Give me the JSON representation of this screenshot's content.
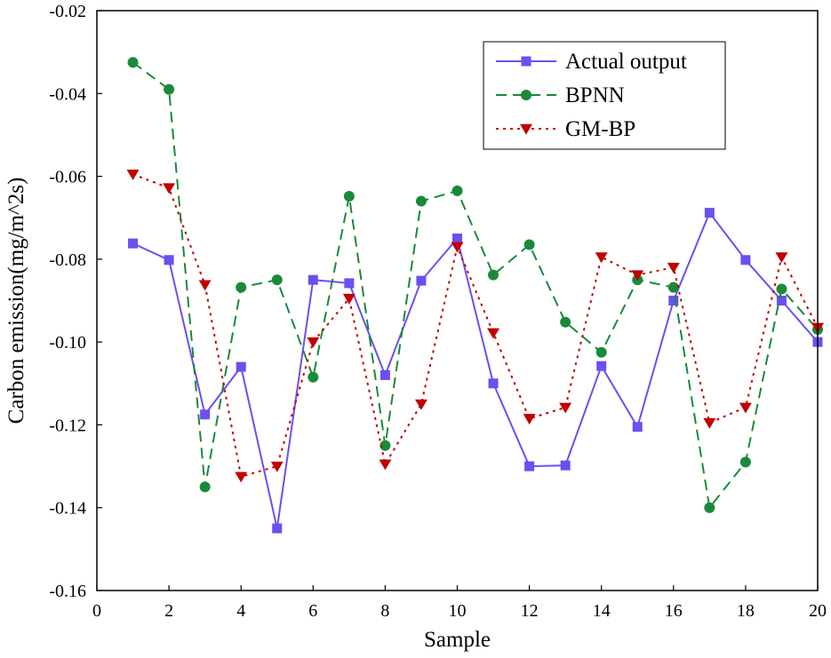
{
  "chart_data": {
    "type": "line",
    "title": "",
    "xlabel": "Sample",
    "ylabel": "Carbon emission(mg/m^2s)",
    "xlim": [
      0,
      20
    ],
    "ylim": [
      -0.16,
      -0.02
    ],
    "xticks": [
      0,
      2,
      4,
      6,
      8,
      10,
      12,
      14,
      16,
      18,
      20
    ],
    "yticks": [
      -0.16,
      -0.14,
      -0.12,
      -0.1,
      -0.08,
      -0.06,
      -0.04,
      -0.02
    ],
    "xtick_labels": [
      "0",
      "2",
      "4",
      "6",
      "8",
      "10",
      "12",
      "14",
      "16",
      "18",
      "20"
    ],
    "ytick_labels": [
      "-0.16",
      "-0.14",
      "-0.12",
      "-0.10",
      "-0.08",
      "-0.06",
      "-0.04",
      "-0.02"
    ],
    "grid": false,
    "legend_position": "top-right",
    "x": [
      1,
      2,
      3,
      4,
      5,
      6,
      7,
      8,
      9,
      10,
      11,
      12,
      13,
      14,
      15,
      16,
      17,
      18,
      19,
      20
    ],
    "series": [
      {
        "name": "Actual output",
        "color": "#6b4ff0",
        "line_style": "solid",
        "marker": "square",
        "values": [
          -0.0762,
          -0.0802,
          -0.1175,
          -0.106,
          -0.145,
          -0.085,
          -0.0858,
          -0.108,
          -0.0852,
          -0.075,
          -0.11,
          -0.13,
          -0.1298,
          -0.1058,
          -0.1205,
          -0.09,
          -0.0688,
          -0.0802,
          -0.09,
          -0.1
        ]
      },
      {
        "name": "BPNN",
        "color": "#1a8a3a",
        "line_style": "dashed",
        "marker": "circle",
        "values": [
          -0.0325,
          -0.039,
          -0.135,
          -0.0868,
          -0.085,
          -0.1085,
          -0.0648,
          -0.125,
          -0.066,
          -0.0635,
          -0.0838,
          -0.0765,
          -0.0952,
          -0.1025,
          -0.085,
          -0.0868,
          -0.14,
          -0.129,
          -0.0872,
          -0.097
        ]
      },
      {
        "name": "GM-BP",
        "color": "#c00000",
        "line_style": "dotted",
        "marker": "triangle-down",
        "values": [
          -0.0595,
          -0.0628,
          -0.0862,
          -0.1325,
          -0.13,
          -0.1,
          -0.0895,
          -0.1295,
          -0.115,
          -0.077,
          -0.0978,
          -0.1185,
          -0.1158,
          -0.0795,
          -0.0838,
          -0.082,
          -0.1195,
          -0.1158,
          -0.0795,
          -0.0965
        ]
      }
    ]
  }
}
